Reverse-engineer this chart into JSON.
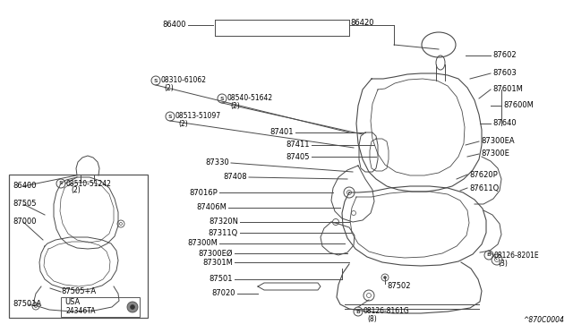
{
  "bg_color": "#ffffff",
  "line_color": "#4a4a4a",
  "text_color": "#000000",
  "diagram_code": "^870C0004",
  "figsize": [
    6.4,
    3.72
  ],
  "dpi": 100,
  "xlim": [
    0,
    640
  ],
  "ylim": [
    0,
    372
  ]
}
